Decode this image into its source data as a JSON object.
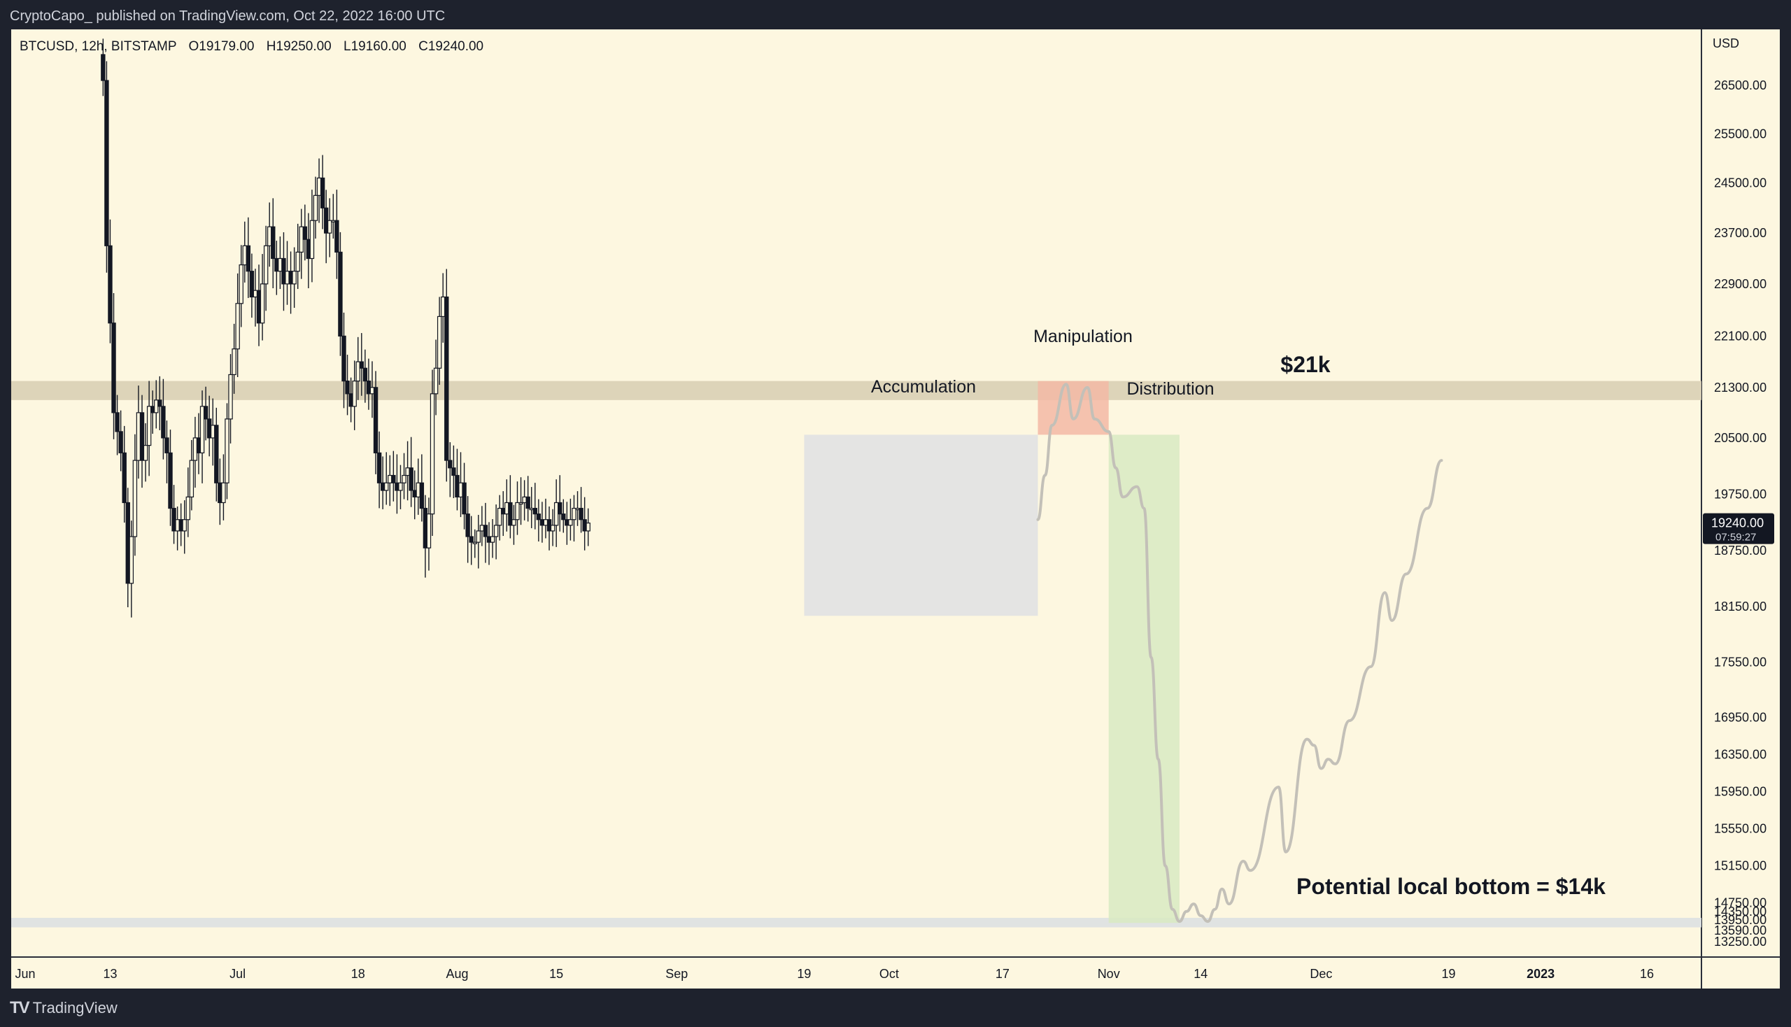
{
  "header": {
    "published_by": "CryptoCapo_ published on TradingView.com, Oct 22, 2022 16:00 UTC"
  },
  "footer": {
    "brand": "TradingView"
  },
  "colors": {
    "background": "#fdf7e0",
    "candle_body": "#131722",
    "resistance_band": "#d9cfb5",
    "support_band": "#dde0e2",
    "accumulation_box": "#dfe1e3",
    "manipulation_box": "#f3b8a4",
    "distribution_box": "#d8eac2",
    "projection_line": "#c3c0b8",
    "price_label_bg": "#131722"
  },
  "chart_data": {
    "type": "candlestick",
    "symbol_info": {
      "symbol": "BTCUSD, 12h, BITSTAMP",
      "open": "O19179.00",
      "high": "H19250.00",
      "low": "L19160.00",
      "close": "C19240.00"
    },
    "currency": "USD",
    "y_ticks": [
      "26500.00",
      "25500.00",
      "24500.00",
      "23700.00",
      "22900.00",
      "22100.00",
      "21300.00",
      "20500.00",
      "19750.00",
      "18750.00",
      "18150.00",
      "17550.00",
      "16950.00",
      "16350.00",
      "15950.00",
      "15550.00",
      "15150.00",
      "14750.00",
      "14350.00",
      "13950.00",
      "13590.00",
      "13250.00"
    ],
    "x_ticks": [
      {
        "label": "Jun",
        "date": "2022-06-01"
      },
      {
        "label": "13",
        "date": "2022-06-13"
      },
      {
        "label": "Jul",
        "date": "2022-07-01"
      },
      {
        "label": "18",
        "date": "2022-07-18"
      },
      {
        "label": "Aug",
        "date": "2022-08-01"
      },
      {
        "label": "15",
        "date": "2022-08-15"
      },
      {
        "label": "Sep",
        "date": "2022-09-01"
      },
      {
        "label": "19",
        "date": "2022-09-19"
      },
      {
        "label": "Oct",
        "date": "2022-10-01"
      },
      {
        "label": "17",
        "date": "2022-10-17"
      },
      {
        "label": "Nov",
        "date": "2022-11-01"
      },
      {
        "label": "14",
        "date": "2022-11-14"
      },
      {
        "label": "Dec",
        "date": "2022-12-01"
      },
      {
        "label": "19",
        "date": "2022-12-19"
      },
      {
        "label": "2023",
        "date": "2023-01-01",
        "bold": true
      },
      {
        "label": "16",
        "date": "2023-01-16"
      }
    ],
    "last_price": "19240.00",
    "countdown": "07:59:27",
    "close_series": {
      "interval": "12h",
      "start": "2022-06-12",
      "end": "2022-10-22",
      "values": [
        26600,
        23500,
        22300,
        20900,
        20600,
        20300,
        19600,
        18400,
        19000,
        20200,
        20900,
        20200,
        20400,
        21000,
        20900,
        21100,
        21000,
        20500,
        20300,
        19500,
        19100,
        19300,
        19100,
        19300,
        19700,
        20200,
        20500,
        20300,
        21000,
        20800,
        20500,
        20700,
        19900,
        19600,
        19900,
        20800,
        21500,
        21900,
        22600,
        23200,
        23500,
        23100,
        22700,
        22800,
        22300,
        22900,
        23500,
        23800,
        23300,
        23100,
        23300,
        22900,
        23100,
        22900,
        23100,
        23400,
        23800,
        23600,
        23300,
        23900,
        24300,
        24600,
        24100,
        23700,
        23900,
        23900,
        23400,
        22100,
        21400,
        21200,
        21000,
        21400,
        21700,
        21600,
        21400,
        21200,
        21300,
        20300,
        19900,
        19800,
        19900,
        20000,
        19900,
        19800,
        19900,
        20000,
        20100,
        19800,
        19700,
        19900,
        19500,
        18800,
        19400,
        21200,
        21600,
        22400,
        22700,
        20200,
        20100,
        20000,
        19700,
        19900,
        19400,
        19000,
        18900,
        18900,
        19100,
        19200,
        19000,
        18900,
        19000,
        19200,
        19500,
        19400,
        19600,
        19200,
        19300,
        19600,
        19600,
        19700,
        19500,
        19500,
        19400,
        19300,
        19200,
        19300,
        19100,
        19200,
        19600,
        19400,
        19300,
        19200,
        19300,
        19500,
        19500,
        19300,
        19100,
        19240
      ]
    },
    "zones": [
      {
        "name": "resistance",
        "label": "$21k",
        "y_range": [
          21100,
          21400
        ]
      },
      {
        "name": "support",
        "label": "Potential local bottom = $14k",
        "y_range": [
          13700,
          14050
        ]
      },
      {
        "name": "accumulation",
        "label": "Accumulation",
        "x_range": [
          "2022-09-19",
          "2022-10-22"
        ],
        "y_range": [
          18050,
          20550
        ]
      },
      {
        "name": "manipulation",
        "label": "Manipulation",
        "x_range": [
          "2022-10-22",
          "2022-11-01"
        ],
        "y_range": [
          20550,
          21400
        ]
      },
      {
        "name": "distribution",
        "label": "Distribution",
        "x_range": [
          "2022-11-01",
          "2022-11-11"
        ],
        "y_range": [
          13850,
          20550
        ]
      }
    ],
    "projection": [
      {
        "x": "2022-10-22",
        "y": 19300
      },
      {
        "x": "2022-10-23",
        "y": 20000
      },
      {
        "x": "2022-10-24",
        "y": 20700
      },
      {
        "x": "2022-10-26",
        "y": 21350
      },
      {
        "x": "2022-10-27",
        "y": 20800
      },
      {
        "x": "2022-10-29",
        "y": 21300
      },
      {
        "x": "2022-10-30",
        "y": 20800
      },
      {
        "x": "2022-11-01",
        "y": 20600
      },
      {
        "x": "2022-11-02",
        "y": 20100
      },
      {
        "x": "2022-11-03",
        "y": 19700
      },
      {
        "x": "2022-11-05",
        "y": 19850
      },
      {
        "x": "2022-11-06",
        "y": 19500
      },
      {
        "x": "2022-11-07",
        "y": 17600
      },
      {
        "x": "2022-11-08",
        "y": 16300
      },
      {
        "x": "2022-11-09",
        "y": 15150
      },
      {
        "x": "2022-11-10",
        "y": 14450
      },
      {
        "x": "2022-11-11",
        "y": 13900
      },
      {
        "x": "2022-11-12",
        "y": 14350
      },
      {
        "x": "2022-11-13",
        "y": 14700
      },
      {
        "x": "2022-11-14",
        "y": 14150
      },
      {
        "x": "2022-11-15",
        "y": 13900
      },
      {
        "x": "2022-11-16",
        "y": 14450
      },
      {
        "x": "2022-11-17",
        "y": 14900
      },
      {
        "x": "2022-11-18",
        "y": 14700
      },
      {
        "x": "2022-11-20",
        "y": 15200
      },
      {
        "x": "2022-11-21",
        "y": 15100
      },
      {
        "x": "2022-11-25",
        "y": 16000
      },
      {
        "x": "2022-11-26",
        "y": 15300
      },
      {
        "x": "2022-11-29",
        "y": 16600
      },
      {
        "x": "2022-11-30",
        "y": 16500
      },
      {
        "x": "2022-12-01",
        "y": 16200
      },
      {
        "x": "2022-12-02",
        "y": 16300
      },
      {
        "x": "2022-12-03",
        "y": 16250
      },
      {
        "x": "2022-12-05",
        "y": 16900
      },
      {
        "x": "2022-12-08",
        "y": 17500
      },
      {
        "x": "2022-12-10",
        "y": 18300
      },
      {
        "x": "2022-12-11",
        "y": 18000
      },
      {
        "x": "2022-12-13",
        "y": 18500
      },
      {
        "x": "2022-12-16",
        "y": 19500
      },
      {
        "x": "2022-12-18",
        "y": 20200
      }
    ]
  }
}
